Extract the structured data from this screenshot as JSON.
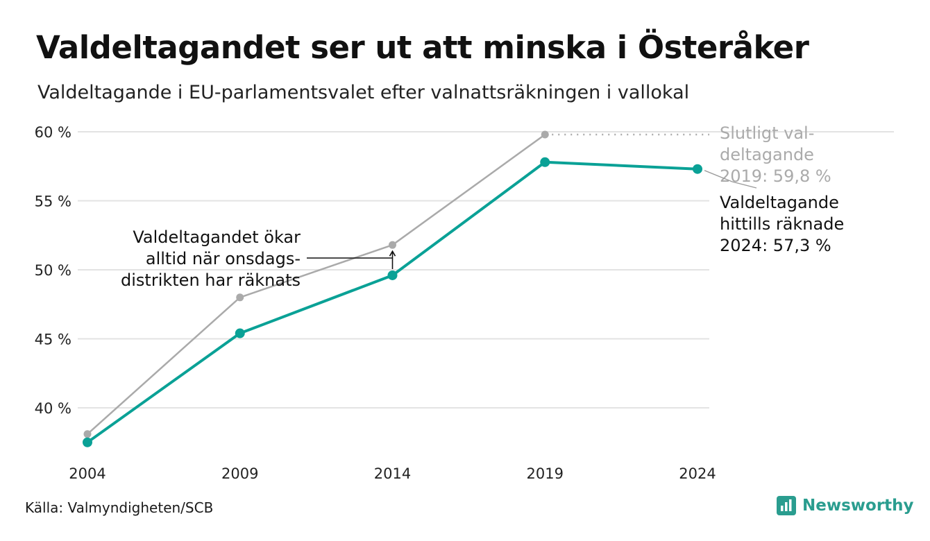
{
  "header": {
    "title": "Valdeltagandet ser ut att minska i Österåker",
    "subtitle": "Valdeltagande i EU-parlamentsvalet efter valnattsräkningen i vallokal"
  },
  "footer": {
    "source": "Källa: Valmyndigheten/SCB",
    "brand": "Newsworthy",
    "brand_icon": "bar-chart-logo-icon"
  },
  "colors": {
    "counted": "#0aa196",
    "final": "#aaaaaa",
    "grid": "#e3e3e3"
  },
  "chart_data": {
    "type": "line",
    "title": "Valdeltagandet ser ut att minska i Österåker",
    "subtitle": "Valdeltagande i EU-parlamentsvalet efter valnattsräkningen i vallokal",
    "xlabel": "",
    "ylabel": "",
    "x": [
      2004,
      2009,
      2014,
      2019,
      2024
    ],
    "ylim": [
      37,
      60
    ],
    "yticks": [
      40,
      45,
      50,
      55,
      60
    ],
    "ytick_labels": [
      "40 %",
      "45 %",
      "50 %",
      "55 %",
      "60 %"
    ],
    "xtick_labels": [
      "2004",
      "2009",
      "2014",
      "2019",
      "2024"
    ],
    "grid": true,
    "series": [
      {
        "key": "final",
        "values": [
          38.1,
          48.0,
          51.8,
          59.8,
          null
        ]
      },
      {
        "key": "counted",
        "values": [
          37.5,
          45.4,
          49.6,
          57.8,
          57.3
        ]
      }
    ],
    "annotations": {
      "increase": [
        "Valdeltagandet ökar",
        "alltid när onsdags-",
        "distrikten har räknats"
      ],
      "final_2019": [
        "Slutligt val-",
        "deltagande",
        "2019: 59,8 %"
      ],
      "counted_2024": [
        "Valdeltagande",
        "hittills räknade",
        "2024: 57,3 %"
      ]
    }
  }
}
